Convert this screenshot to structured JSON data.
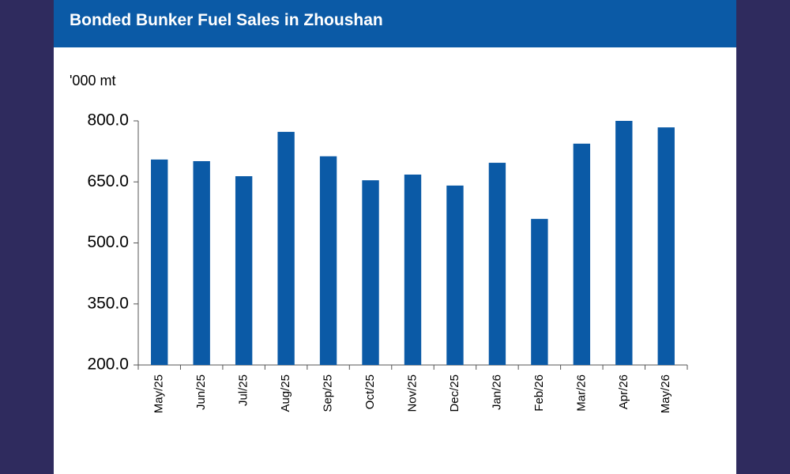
{
  "chart_data": {
    "type": "bar",
    "title": "Bonded Bunker Fuel Sales in Zhoushan",
    "y_label": "'000 mt",
    "categories": [
      "May/25",
      "Jun/25",
      "Jul/25",
      "Aug/25",
      "Sep/25",
      "Oct/25",
      "Nov/25",
      "Dec/25",
      "Jan/26",
      "Feb/26",
      "Mar/26",
      "Apr/26",
      "May/26"
    ],
    "values": [
      705,
      701,
      664,
      773,
      713,
      654,
      668,
      641,
      697,
      559,
      744,
      800,
      784
    ],
    "color": "#0b5aa6",
    "ylim": [
      200,
      800
    ],
    "yticks": [
      {
        "value": 200,
        "label": "200.0"
      },
      {
        "value": 350,
        "label": "350.0"
      },
      {
        "value": 500,
        "label": "500.0"
      },
      {
        "value": 650,
        "label": "650.0"
      },
      {
        "value": 800,
        "label": "800.0"
      }
    ],
    "grid": false
  }
}
